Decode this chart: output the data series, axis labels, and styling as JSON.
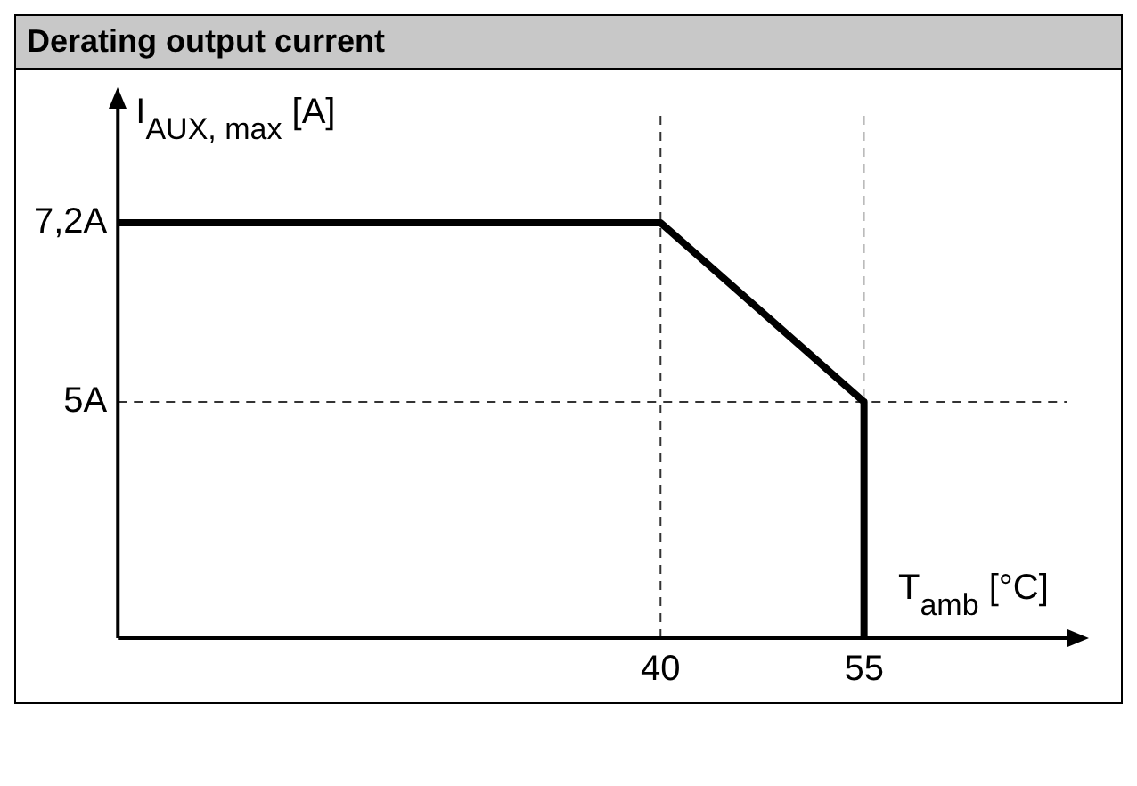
{
  "chart_data": {
    "type": "line",
    "title": "Derating output current",
    "xlabel": "T$_{amb}$ [°C]",
    "ylabel": "I$_{AUX, max}$ [A]",
    "x": [
      0,
      40,
      55,
      55
    ],
    "series": [
      {
        "color": "#000000",
        "values": [
          7.2,
          7.2,
          5,
          2.1
        ]
      }
    ],
    "xlim": [
      0,
      70
    ],
    "xticks": [
      40,
      55
    ],
    "ylim": [
      2.1,
      8.6
    ],
    "yticks": [
      {
        "value": 5,
        "label": "5A"
      },
      {
        "value": 7.2,
        "label": "7,2A"
      }
    ],
    "ref_lines": [
      {
        "axis": "x",
        "value": 40,
        "color": "#333333",
        "line_style": "dashed"
      },
      {
        "axis": "x",
        "value": 55,
        "color": "#bbbbbb",
        "line_style": "dashed"
      },
      {
        "axis": "y",
        "value": 5,
        "color": "#333333",
        "line_style": "dashed"
      }
    ],
    "grid": false,
    "legend": false,
    "marker": "none",
    "line_style": "solid"
  }
}
